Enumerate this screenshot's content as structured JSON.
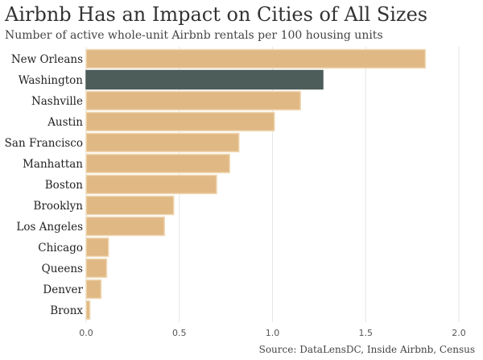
{
  "chart_data": {
    "type": "bar",
    "orientation": "horizontal",
    "title": "Airbnb Has an Impact on Cities of All Sizes",
    "subtitle": "Number of active whole-unit Airbnb rentals per 100 housing units",
    "source": "Source: DataLensDC, Inside Airbnb, Census",
    "categories": [
      "New Orleans",
      "Washington",
      "Nashville",
      "Austin",
      "San Francisco",
      "Manhattan",
      "Boston",
      "Brooklyn",
      "Los Angeles",
      "Chicago",
      "Queens",
      "Denver",
      "Bronx"
    ],
    "values": [
      1.82,
      1.27,
      1.15,
      1.01,
      0.82,
      0.77,
      0.7,
      0.47,
      0.42,
      0.12,
      0.11,
      0.08,
      0.02
    ],
    "highlight": "Washington",
    "xlim": [
      0,
      2.0
    ],
    "xticks": [
      "0.0",
      "0.5",
      "1.0",
      "1.5",
      "2.0"
    ],
    "grid": "vertical",
    "colors": {
      "bar": "#e0b884",
      "bar_edge": "#f0d9b5",
      "highlight": "#4d5d59",
      "grid": "#e6e6e6"
    }
  }
}
